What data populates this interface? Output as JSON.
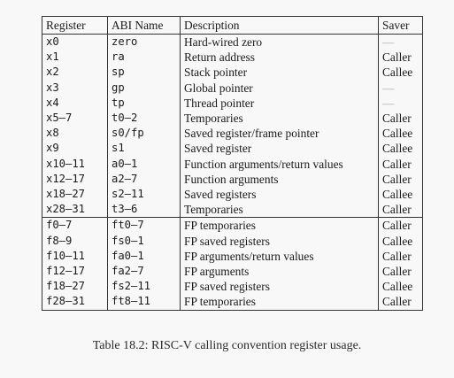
{
  "table": {
    "headers": [
      "Register",
      "ABI Name",
      "Description",
      "Saver"
    ],
    "integer_rows": [
      {
        "reg": "x0",
        "abi": "zero",
        "desc": "Hard-wired zero",
        "saver": "—"
      },
      {
        "reg": "x1",
        "abi": "ra",
        "desc": "Return address",
        "saver": "Caller"
      },
      {
        "reg": "x2",
        "abi": "sp",
        "desc": "Stack pointer",
        "saver": "Callee"
      },
      {
        "reg": "x3",
        "abi": "gp",
        "desc": "Global pointer",
        "saver": "—"
      },
      {
        "reg": "x4",
        "abi": "tp",
        "desc": "Thread pointer",
        "saver": "—"
      },
      {
        "reg": "x5–7",
        "abi": "t0–2",
        "desc": "Temporaries",
        "saver": "Caller"
      },
      {
        "reg": "x8",
        "abi": "s0/fp",
        "desc": "Saved register/frame pointer",
        "saver": "Callee"
      },
      {
        "reg": "x9",
        "abi": "s1",
        "desc": "Saved register",
        "saver": "Callee"
      },
      {
        "reg": "x10–11",
        "abi": "a0–1",
        "desc": "Function arguments/return values",
        "saver": "Caller"
      },
      {
        "reg": "x12–17",
        "abi": "a2–7",
        "desc": "Function arguments",
        "saver": "Caller"
      },
      {
        "reg": "x18–27",
        "abi": "s2–11",
        "desc": "Saved registers",
        "saver": "Callee"
      },
      {
        "reg": "x28–31",
        "abi": "t3–6",
        "desc": "Temporaries",
        "saver": "Caller"
      }
    ],
    "fp_rows": [
      {
        "reg": "f0–7",
        "abi": "ft0–7",
        "desc": "FP temporaries",
        "saver": "Caller"
      },
      {
        "reg": "f8–9",
        "abi": "fs0–1",
        "desc": "FP saved registers",
        "saver": "Callee"
      },
      {
        "reg": "f10–11",
        "abi": "fa0–1",
        "desc": "FP arguments/return values",
        "saver": "Caller"
      },
      {
        "reg": "f12–17",
        "abi": "fa2–7",
        "desc": "FP arguments",
        "saver": "Caller"
      },
      {
        "reg": "f18–27",
        "abi": "fs2–11",
        "desc": "FP saved registers",
        "saver": "Callee"
      },
      {
        "reg": "f28–31",
        "abi": "ft8–11",
        "desc": "FP temporaries",
        "saver": "Caller"
      }
    ]
  },
  "caption": "Table 18.2: RISC-V calling convention register usage."
}
